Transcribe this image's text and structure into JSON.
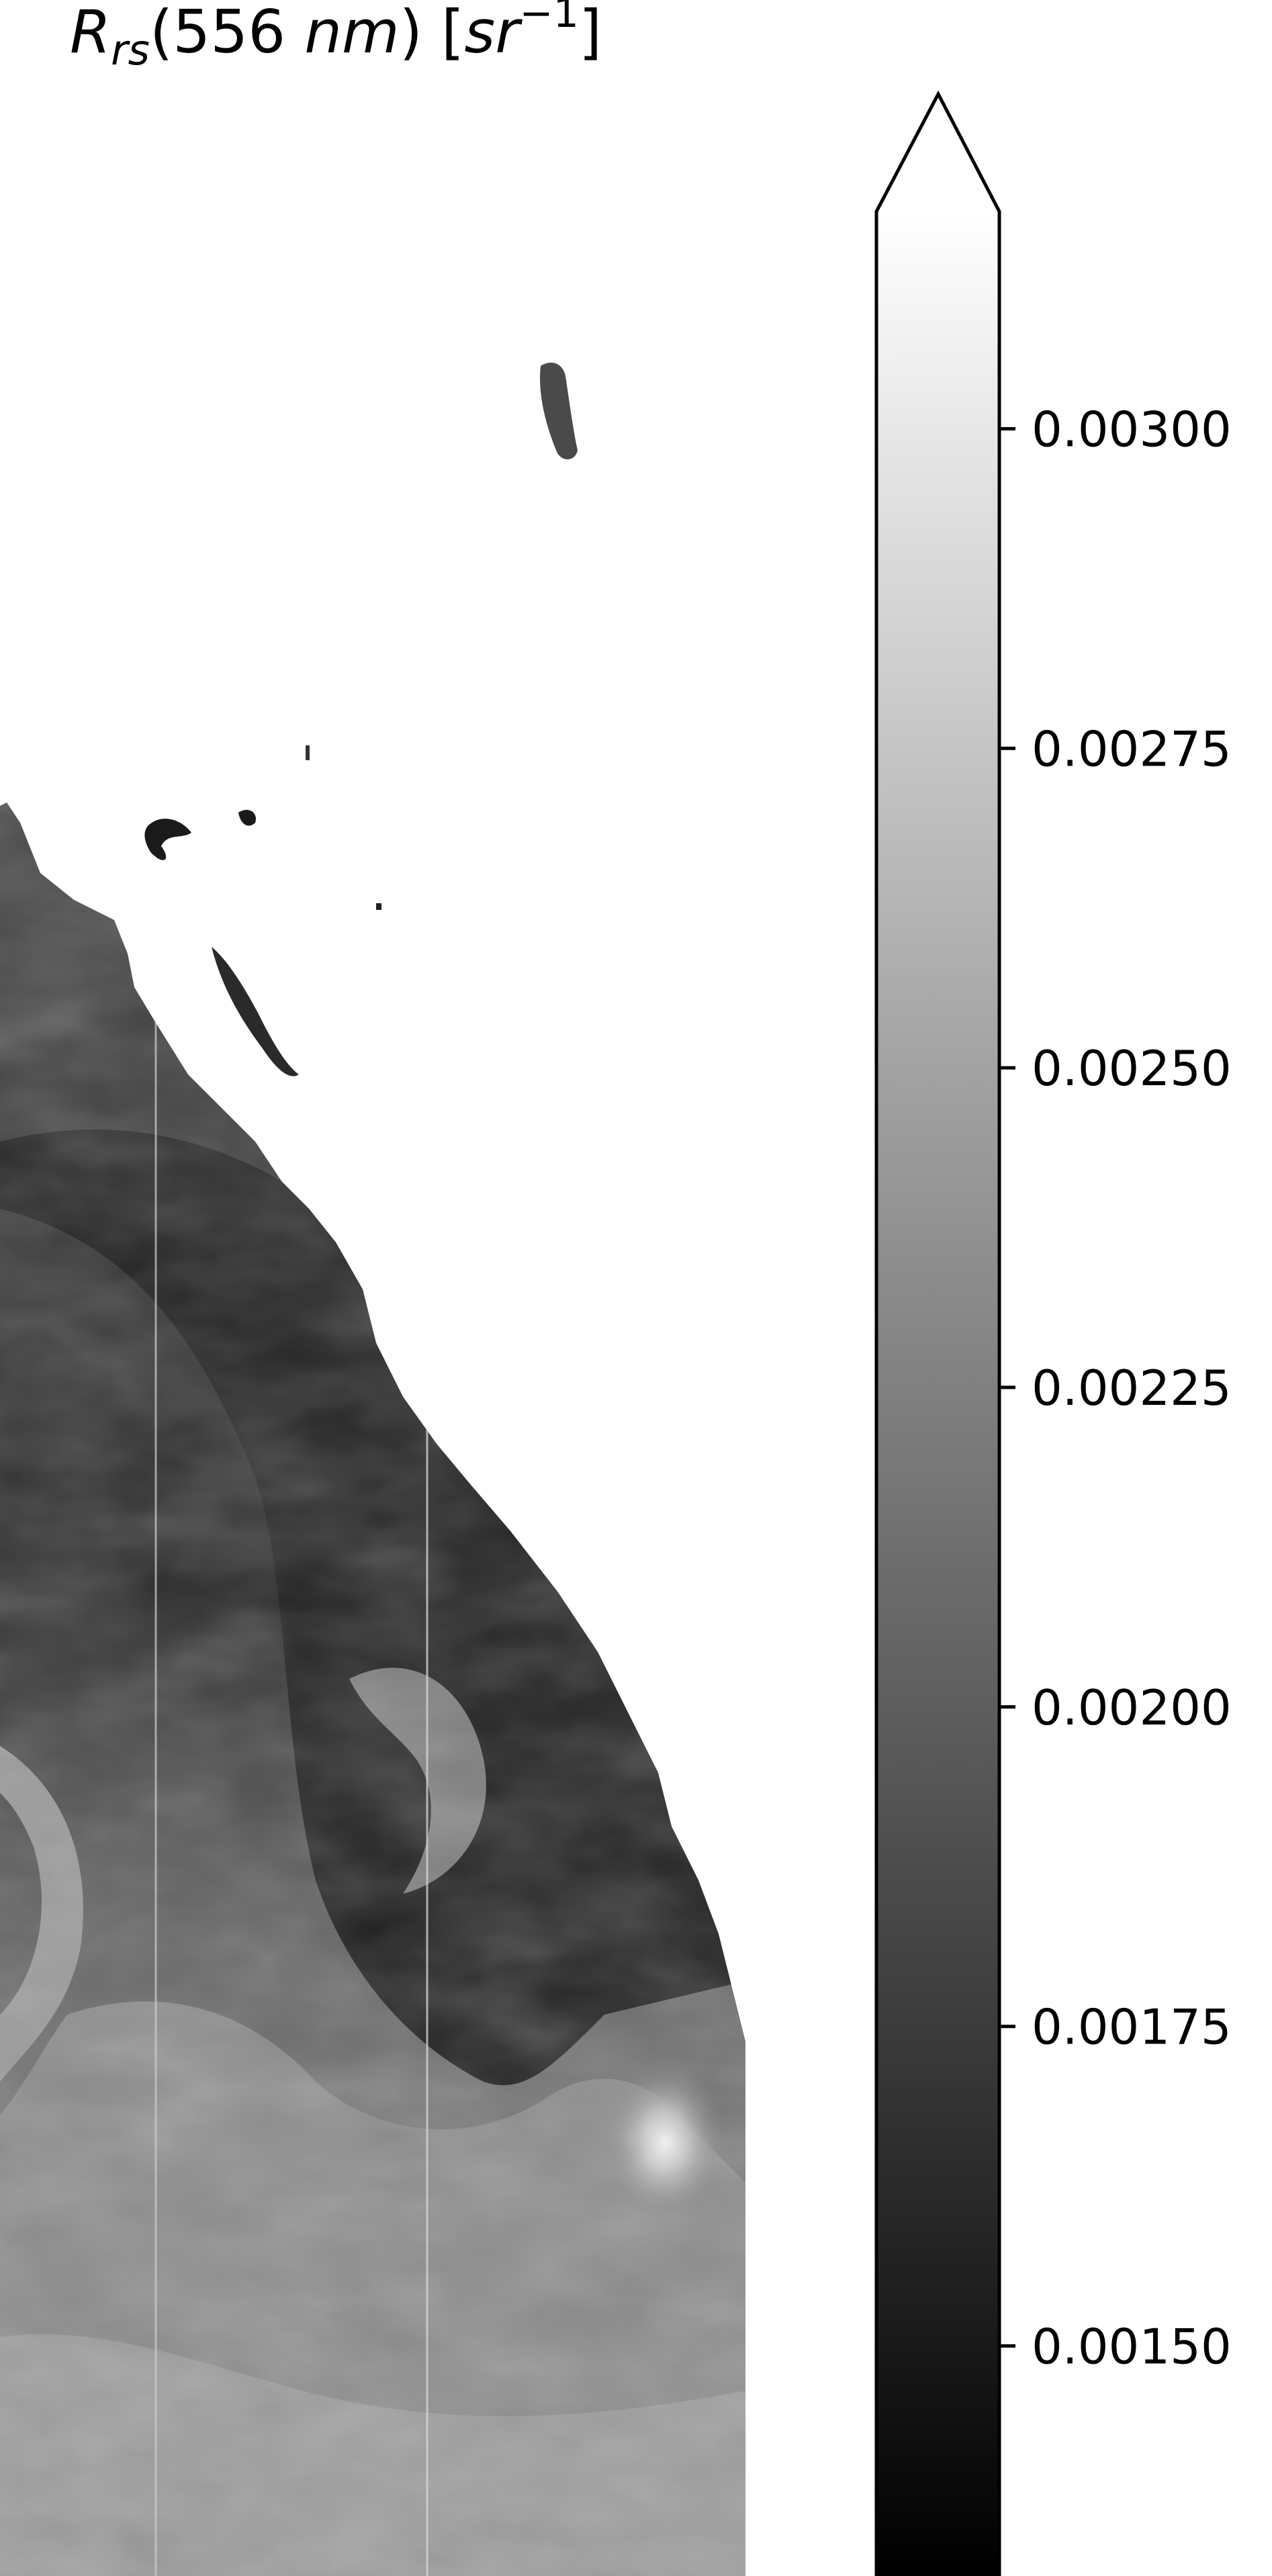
{
  "chart_data": {
    "type": "heatmap",
    "title": {
      "symbol": "R",
      "subscript": "rs",
      "open_paren": "(",
      "wavelength": "556 ",
      "wavelength_unit": "nm",
      "close_paren": ")",
      "unit_open": " [",
      "unit": "sr",
      "superscript": "−1",
      "unit_close": "]"
    },
    "colormap": "grayscale (black → white)",
    "colorbar": {
      "orientation": "vertical",
      "placement": "right",
      "extend": "max",
      "vmin": 0.00132,
      "vmax": 0.00317,
      "ticks": [
        0.0015,
        0.00175,
        0.002,
        0.00225,
        0.0025,
        0.00275,
        0.003
      ],
      "tick_labels": [
        "0.00150",
        "0.00175",
        "0.00200",
        "0.00225",
        "0.00250",
        "0.00275",
        "0.00300"
      ]
    },
    "image_description_values": {
      "land_and_cloud_fill": "saturated white (above vmax)",
      "ocean_range": [
        0.00132,
        0.0027
      ]
    }
  },
  "colors": {
    "background": "#ffffff",
    "ink": "#000000",
    "cmap_low": "#000000",
    "cmap_high": "#ffffff"
  }
}
